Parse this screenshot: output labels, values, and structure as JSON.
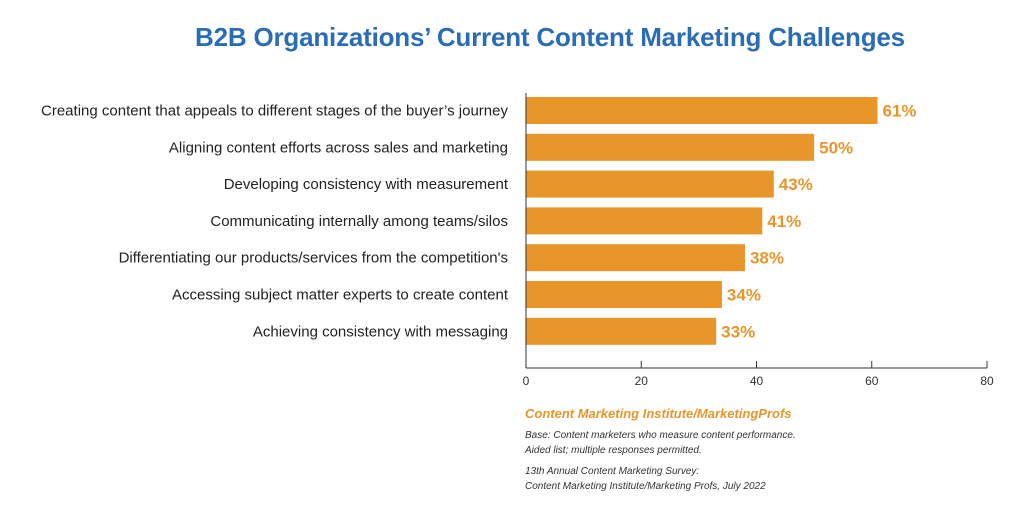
{
  "chart_data": {
    "type": "bar",
    "orientation": "horizontal",
    "title": "B2B Organizations’ Current Content Marketing Challenges",
    "categories": [
      "Creating content that appeals to different stages of the buyer’s journey",
      "Aligning content efforts across sales and marketing",
      "Developing consistency with measurement",
      "Communicating internally among teams/silos",
      "Differentiating our products/services from the competition's",
      "Accessing subject matter experts to create content",
      "Achieving consistency with messaging"
    ],
    "values": [
      61,
      50,
      43,
      41,
      38,
      34,
      33
    ],
    "value_labels": [
      "61%",
      "50%",
      "43%",
      "41%",
      "38%",
      "34%",
      "33%"
    ],
    "xlim": [
      0,
      80
    ],
    "xticks": [
      0,
      20,
      40,
      60,
      80
    ],
    "xlabel": "",
    "ylabel": "",
    "grid": false,
    "legend": "none"
  },
  "colors": {
    "bar": "#E8952A",
    "value_label": "#E8952A",
    "title": "#2A6DB5",
    "source": "#E8952A",
    "axis": "#333333"
  },
  "footer": {
    "source": "Content Marketing Institute/MarketingProfs",
    "base_line1": "Base: Content marketers who measure content performance.",
    "base_line2": "Aided list; multiple responses permitted.",
    "survey_line1": "13th Annual Content Marketing Survey:",
    "survey_line2": "Content Marketing Institute/Marketing Profs, July 2022"
  }
}
